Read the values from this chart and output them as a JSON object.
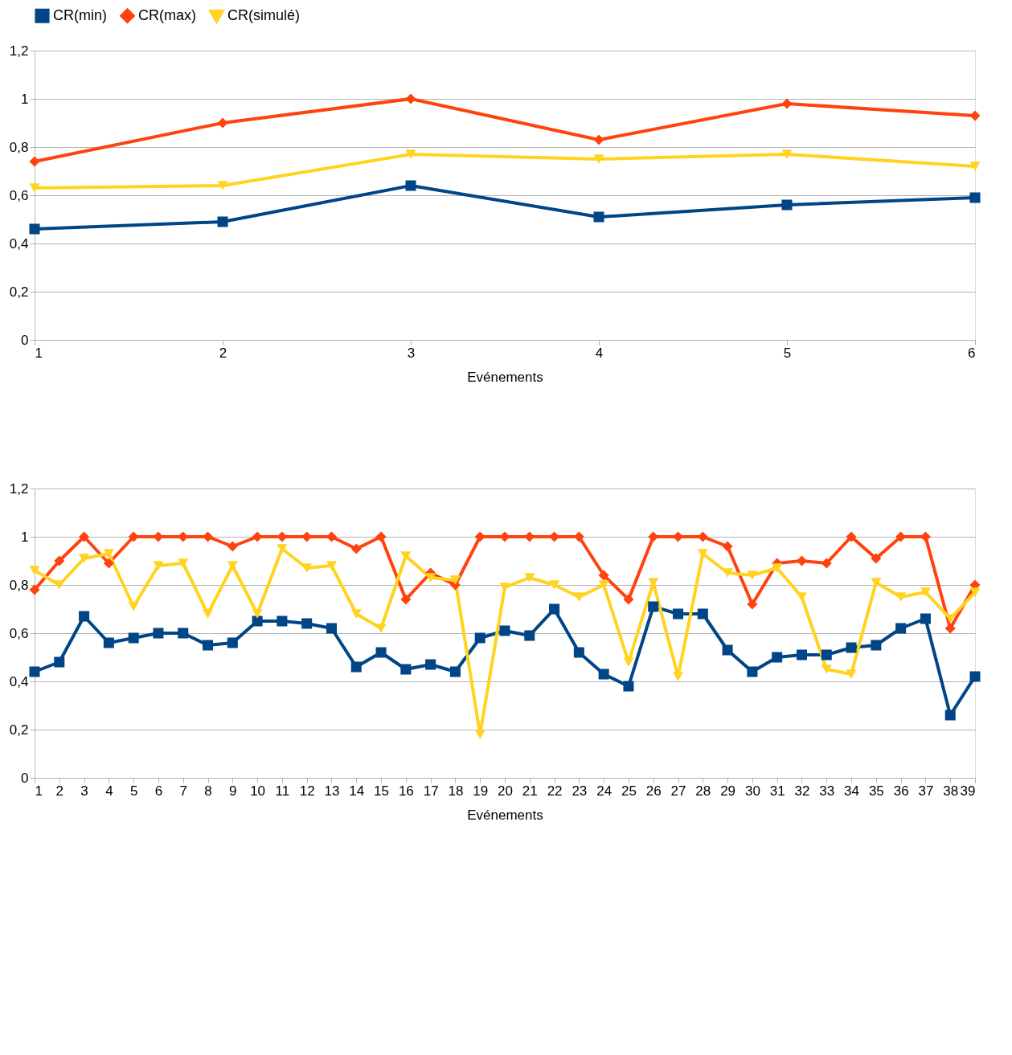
{
  "chart_data": [
    {
      "type": "line",
      "xlabel": "Evénements",
      "legend": "top",
      "grid": "y",
      "line_style": "solid",
      "x": [
        1,
        2,
        3,
        4,
        5,
        6
      ],
      "xlim": [
        1,
        6
      ],
      "xticks": [
        1,
        2,
        3,
        4,
        5,
        6
      ],
      "ylim": [
        0,
        1.2
      ],
      "yticks": [
        {
          "value": 0,
          "label": "0"
        },
        {
          "value": 0.2,
          "label": "0,2"
        },
        {
          "value": 0.4,
          "label": "0,4"
        },
        {
          "value": 0.6,
          "label": "0,6"
        },
        {
          "value": 0.8,
          "label": "0,8"
        },
        1,
        {
          "value": 1.2,
          "label": "1,2"
        }
      ],
      "series": [
        {
          "name": "CR(min)",
          "color": "#004586",
          "marker": "square",
          "values": [
            0.46,
            0.49,
            0.64,
            0.51,
            0.56,
            0.59
          ]
        },
        {
          "name": "CR(max)",
          "color": "#ff420e",
          "marker": "diamond",
          "values": [
            0.74,
            0.9,
            1.0,
            0.83,
            0.98,
            0.93
          ]
        },
        {
          "name": "CR(simulé)",
          "color": "#ffd320",
          "marker": "triangle",
          "values": [
            0.63,
            0.64,
            0.77,
            0.75,
            0.77,
            0.72
          ]
        }
      ]
    },
    {
      "type": "line",
      "xlabel": "Evénements",
      "legend": "top",
      "grid": "y",
      "line_style": "solid",
      "x": [
        1,
        2,
        3,
        4,
        5,
        6,
        7,
        8,
        9,
        10,
        11,
        12,
        13,
        14,
        15,
        16,
        17,
        18,
        19,
        20,
        21,
        22,
        23,
        24,
        25,
        26,
        27,
        28,
        29,
        30,
        31,
        32,
        33,
        34,
        35,
        36,
        37,
        38,
        39
      ],
      "xlim": [
        1,
        39
      ],
      "xticks": [
        1,
        2,
        3,
        4,
        5,
        6,
        7,
        8,
        9,
        10,
        11,
        12,
        13,
        14,
        15,
        16,
        17,
        18,
        19,
        20,
        21,
        22,
        23,
        24,
        25,
        26,
        27,
        28,
        29,
        30,
        31,
        32,
        33,
        34,
        35,
        36,
        37,
        38,
        39
      ],
      "ylim": [
        0,
        1.2
      ],
      "yticks": [
        {
          "value": 0,
          "label": "0"
        },
        {
          "value": 0.2,
          "label": "0,2"
        },
        {
          "value": 0.4,
          "label": "0,4"
        },
        {
          "value": 0.6,
          "label": "0,6"
        },
        {
          "value": 0.8,
          "label": "0,8"
        },
        1,
        {
          "value": 1.2,
          "label": "1,2"
        }
      ],
      "series": [
        {
          "name": "CR(min)",
          "color": "#004586",
          "marker": "square",
          "values": [
            0.44,
            0.48,
            0.67,
            0.56,
            0.58,
            0.6,
            0.6,
            0.55,
            0.56,
            0.65,
            0.65,
            0.64,
            0.62,
            0.46,
            0.52,
            0.45,
            0.47,
            0.44,
            0.58,
            0.61,
            0.59,
            0.7,
            0.52,
            0.43,
            0.38,
            0.71,
            0.68,
            0.68,
            0.53,
            0.44,
            0.5,
            0.51,
            0.51,
            0.54,
            0.55,
            0.62,
            0.66,
            0.26,
            0.42
          ]
        },
        {
          "name": "CR(max)",
          "color": "#ff420e",
          "marker": "diamond",
          "values": [
            0.78,
            0.9,
            1.0,
            0.89,
            1.0,
            1.0,
            1.0,
            1.0,
            0.96,
            1.0,
            1.0,
            1.0,
            1.0,
            0.95,
            1.0,
            0.74,
            0.85,
            0.8,
            1.0,
            1.0,
            1.0,
            1.0,
            1.0,
            0.84,
            0.74,
            1.0,
            1.0,
            1.0,
            0.96,
            0.72,
            0.89,
            0.9,
            0.89,
            1.0,
            0.91,
            1.0,
            1.0,
            0.62,
            0.8
          ]
        },
        {
          "name": "CR(simulé)",
          "color": "#ffd320",
          "marker": "triangle",
          "values": [
            0.86,
            0.8,
            0.91,
            0.93,
            0.71,
            0.88,
            0.89,
            0.68,
            0.88,
            0.68,
            0.95,
            0.87,
            0.88,
            0.68,
            0.62,
            0.92,
            0.83,
            0.82,
            0.18,
            0.79,
            0.83,
            0.8,
            0.75,
            0.8,
            0.48,
            0.81,
            0.42,
            0.93,
            0.85,
            0.84,
            0.87,
            0.75,
            0.45,
            0.43,
            0.81,
            0.75,
            0.77,
            0.66,
            0.77
          ]
        }
      ]
    }
  ]
}
